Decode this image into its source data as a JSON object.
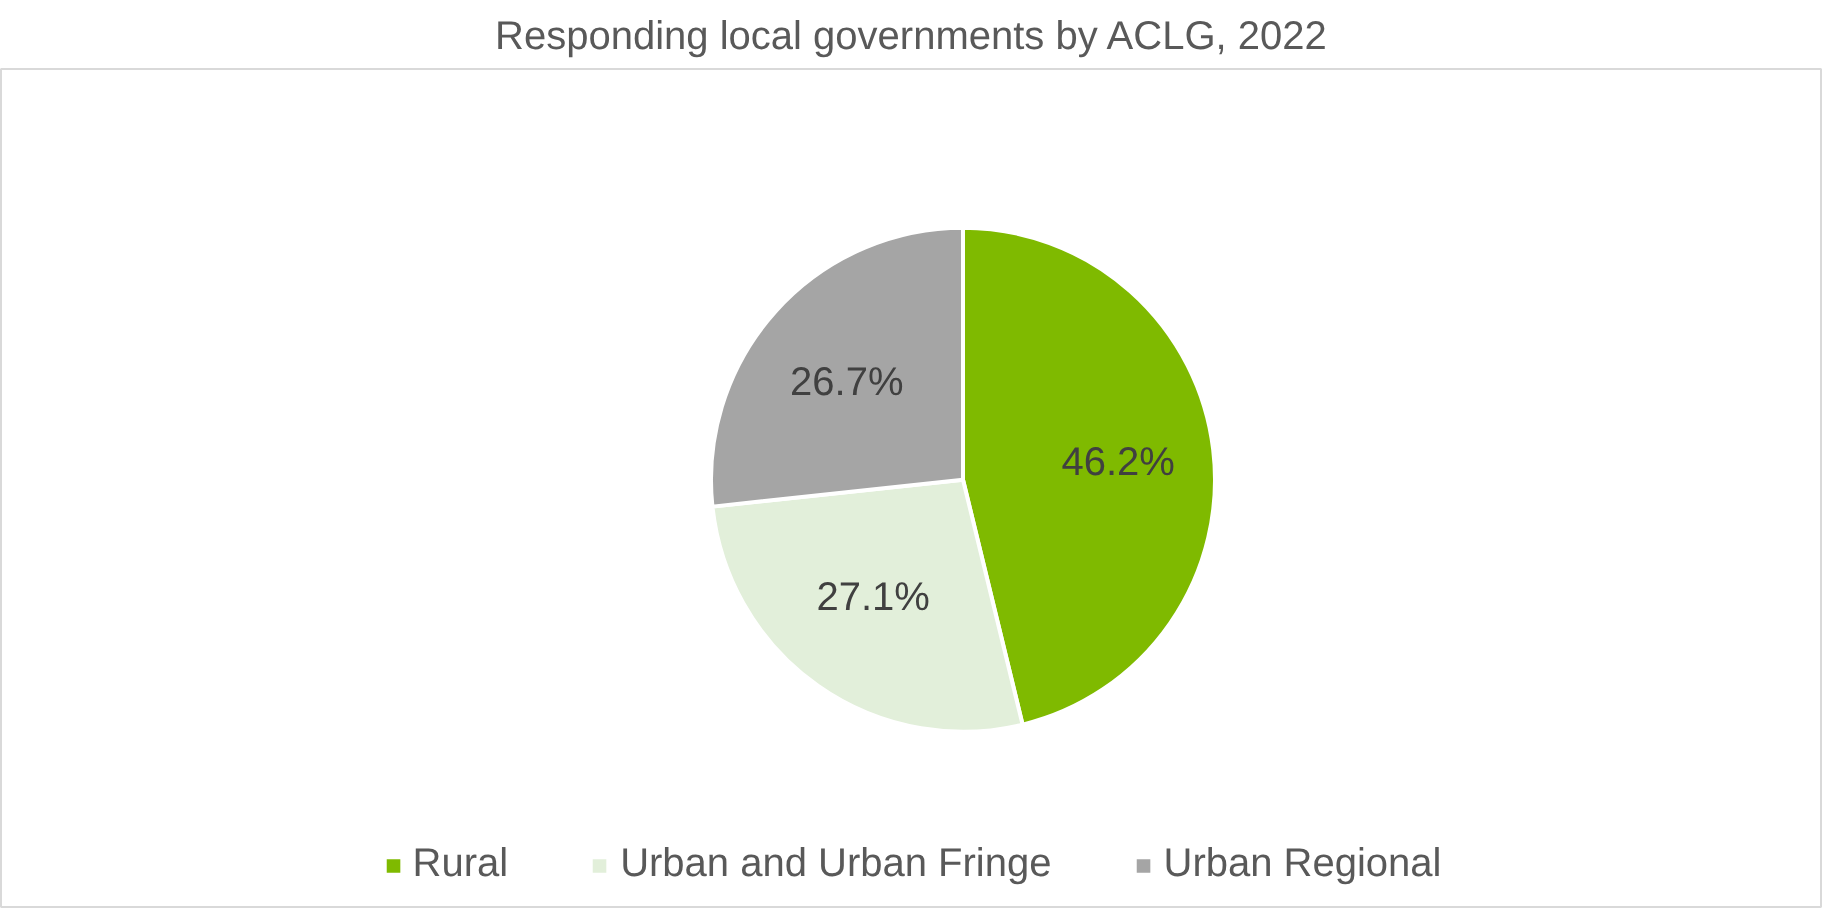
{
  "chart_data": {
    "type": "pie",
    "title": "Responding local governments by ACLG, 2022",
    "categories": [
      "Rural",
      "Urban and Urban Fringe",
      "Urban Regional"
    ],
    "values": [
      46.2,
      27.1,
      26.7
    ],
    "colors": [
      "#7fba00",
      "#e2efda",
      "#a5a5a5"
    ],
    "value_labels": [
      "46.2%",
      "27.1%",
      "26.7%"
    ],
    "legend": "bottom"
  }
}
